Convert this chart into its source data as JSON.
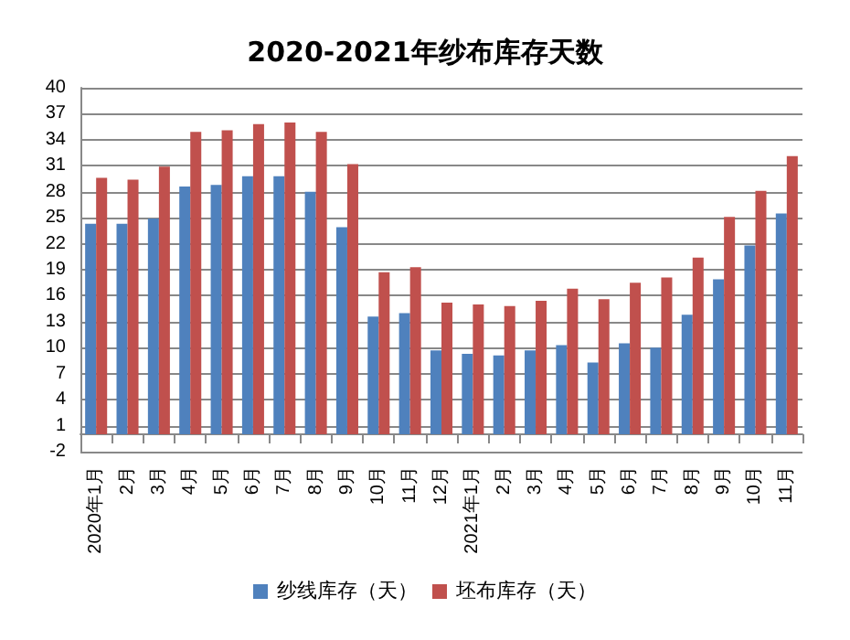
{
  "chart_data": {
    "type": "bar",
    "title": "2020-2021年纱布库存天数",
    "categories": [
      "2020年1月",
      "2月",
      "3月",
      "4月",
      "5月",
      "6月",
      "7月",
      "8月",
      "9月",
      "10月",
      "11月",
      "12月",
      "2021年1月",
      "2月",
      "3月",
      "4月",
      "5月",
      "6月",
      "7月",
      "8月",
      "9月",
      "10月",
      "11月"
    ],
    "series": [
      {
        "name": "纱线库存（天）",
        "color": "#4f81bd",
        "values": [
          24.3,
          24.3,
          24.9,
          28.6,
          28.8,
          29.8,
          29.8,
          28.0,
          23.9,
          13.6,
          14.0,
          9.7,
          9.3,
          9.1,
          9.7,
          10.3,
          8.3,
          10.5,
          10.0,
          13.8,
          17.9,
          21.8,
          25.5
        ]
      },
      {
        "name": "坯布库存（天）",
        "color": "#c0504d",
        "values": [
          29.6,
          29.4,
          30.9,
          34.9,
          35.1,
          35.8,
          36.0,
          34.9,
          31.2,
          18.7,
          19.3,
          15.2,
          15.0,
          14.8,
          15.4,
          16.8,
          15.6,
          17.5,
          18.1,
          20.4,
          25.1,
          28.1,
          32.1
        ]
      }
    ],
    "ylim": [
      -2,
      40
    ],
    "yticks": [
      -2,
      1,
      4,
      7,
      10,
      13,
      16,
      19,
      22,
      25,
      28,
      31,
      34,
      37,
      40
    ],
    "grid": "y",
    "legend": "bottom"
  }
}
